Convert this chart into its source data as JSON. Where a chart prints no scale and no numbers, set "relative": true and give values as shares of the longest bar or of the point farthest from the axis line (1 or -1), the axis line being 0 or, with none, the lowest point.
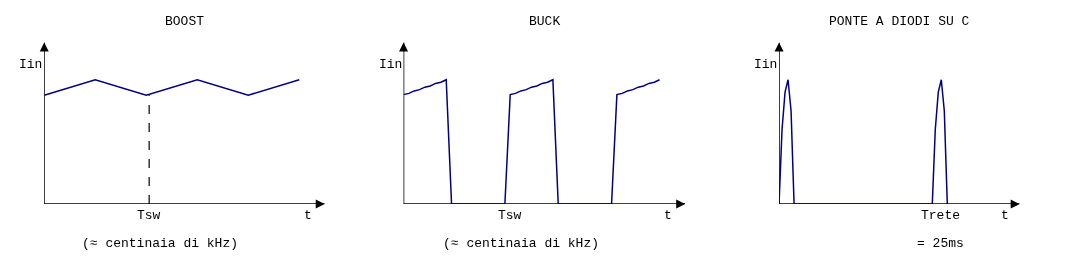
{
  "chart_data": [
    {
      "type": "line",
      "title": "BOOST",
      "xlabel": "t",
      "ylabel": "Iin",
      "relative": true,
      "categories": [
        null,
        null,
        null,
        null,
        null,
        null
      ],
      "series": [
        {
          "color": "#000080",
          "values": [
            0.875,
            1,
            0.875,
            1,
            0.875,
            1
          ]
        }
      ],
      "annotations": [
        "Tsw",
        "(≈ centinaia di kHz)"
      ]
    },
    {
      "type": "line",
      "title": "BUCK",
      "xlabel": "t",
      "ylabel": "Iin",
      "relative": true,
      "categories": [
        null,
        null,
        null,
        null,
        null,
        null,
        null,
        null,
        null,
        null,
        null,
        null,
        null,
        null,
        null,
        null,
        null,
        null,
        null,
        null,
        null,
        null,
        null,
        null,
        null,
        null,
        null,
        null,
        null,
        null,
        null,
        null,
        null,
        null,
        null,
        null,
        null,
        null,
        null,
        null,
        null,
        null,
        null,
        null,
        null,
        null,
        null,
        null,
        null
      ],
      "series": [
        {
          "color": "#000080",
          "values": [
            0.88,
            0.89,
            0.91,
            0.92,
            0.94,
            0.95,
            0.97,
            0.98,
            1,
            0,
            0,
            0,
            0,
            0,
            0,
            0,
            0,
            0,
            0,
            0,
            0.88,
            0.89,
            0.91,
            0.92,
            0.94,
            0.95,
            0.97,
            0.98,
            1,
            0,
            0,
            0,
            0,
            0,
            0,
            0,
            0,
            0,
            0,
            0,
            0.88,
            0.89,
            0.91,
            0.92,
            0.94,
            0.95,
            0.97,
            0.98,
            1
          ]
        }
      ],
      "annotations": [
        "Tsw",
        "(≈ centinaia di kHz)"
      ]
    },
    {
      "type": "line",
      "title": "PONTE A DIODI SU C",
      "xlabel": "t",
      "ylabel": "Iin",
      "relative": true,
      "categories": [
        null,
        null,
        null,
        null,
        null,
        null,
        null,
        null,
        null,
        null,
        null,
        null,
        null,
        null,
        null,
        null,
        null,
        null,
        null,
        null,
        null,
        null,
        null,
        null,
        null,
        null,
        null,
        null,
        null,
        null,
        null,
        null,
        null,
        null,
        null,
        null,
        null,
        null,
        null,
        null,
        null,
        null,
        null,
        null,
        null,
        null,
        null,
        null,
        null,
        null,
        null,
        null,
        null,
        null,
        null,
        null,
        null
      ],
      "series": [
        {
          "color": "#000080",
          "values": [
            0,
            0.6,
            0.9,
            1,
            0.75,
            0,
            0,
            0,
            0,
            0,
            0,
            0,
            0,
            0,
            0,
            0,
            0,
            0,
            0,
            0,
            0,
            0,
            0,
            0,
            0,
            0,
            0,
            0,
            0,
            0,
            0,
            0,
            0,
            0,
            0,
            0,
            0,
            0,
            0,
            0,
            0,
            0,
            0,
            0,
            0,
            0,
            0,
            0,
            0,
            0,
            0,
            0,
            0.6,
            0.9,
            1,
            0.75,
            0
          ]
        }
      ],
      "annotations": [
        "Trete",
        "= 25ms"
      ]
    }
  ]
}
